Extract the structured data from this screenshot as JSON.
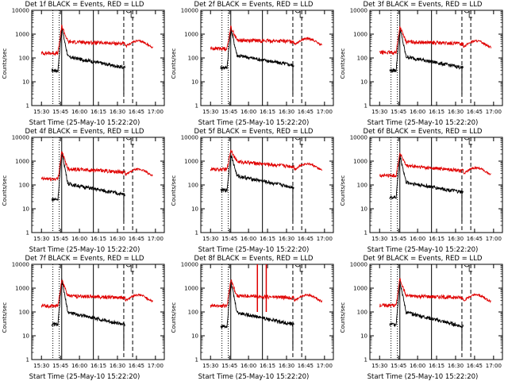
{
  "figure": {
    "xlabel": "Start Time (25-May-10 15:22:20)",
    "ylabel": "Counts/sec"
  },
  "chart_data": [
    {
      "type": "line",
      "title": "Det 1f BLACK = Events, RED = LLD",
      "xlabel": "Start Time (25-May-10 15:22:20)",
      "ylabel": "Counts/sec",
      "yscale": "log",
      "ylim": [
        1,
        10000
      ],
      "xlim": [
        "15:22:20",
        "17:07:00"
      ],
      "x_ticks": [
        "15:30",
        "15:45",
        "16:00",
        "16:15",
        "16:30",
        "16:45",
        "17:00"
      ],
      "y_ticks": [
        "1",
        "10",
        "100",
        "1000",
        "10000"
      ],
      "series": [
        {
          "name": "BLACK = Events",
          "color": "#000000",
          "pre": 30,
          "peak": 1800,
          "decay": 70,
          "end": 40
        },
        {
          "name": "RED = LLD",
          "color": "#e00000",
          "pre": 160,
          "peak": 2200,
          "decay": 300,
          "end": 400
        }
      ],
      "markers": {
        "dotted": [
          "15:39",
          "15:44"
        ],
        "solid": [
          "15:46",
          "16:11"
        ],
        "dashed": [
          "16:35",
          "16:42"
        ]
      }
    },
    {
      "type": "line",
      "title": "Det 2f BLACK = Events, RED = LLD",
      "xlabel": "Start Time (25-May-10 15:22:20)",
      "ylabel": "Counts/sec",
      "yscale": "log",
      "ylim": [
        1,
        10000
      ],
      "xlim": [
        "15:22:20",
        "17:07:00"
      ],
      "x_ticks": [
        "15:30",
        "15:45",
        "16:00",
        "16:15",
        "16:30",
        "16:45",
        "17:00"
      ],
      "y_ticks": [
        "1",
        "10",
        "100",
        "1000",
        "10000"
      ],
      "series": [
        {
          "name": "BLACK = Events",
          "color": "#000000",
          "pre": 40,
          "peak": 1800,
          "decay": 80,
          "end": 50
        },
        {
          "name": "RED = LLD",
          "color": "#e00000",
          "pre": 250,
          "peak": 2000,
          "decay": 350,
          "end": 500
        }
      ],
      "markers": {
        "dotted": [
          "15:39",
          "15:44"
        ],
        "solid": [
          "15:46",
          "16:11"
        ],
        "dashed": [
          "16:35",
          "16:42"
        ]
      }
    },
    {
      "type": "line",
      "title": "Det 3f BLACK = Events, RED = LLD",
      "xlabel": "Start Time (25-May-10 15:22:20)",
      "ylabel": "Counts/sec",
      "yscale": "log",
      "ylim": [
        1,
        10000
      ],
      "xlim": [
        "15:22:20",
        "17:07:00"
      ],
      "x_ticks": [
        "15:30",
        "15:45",
        "16:00",
        "16:15",
        "16:30",
        "16:45",
        "17:00"
      ],
      "y_ticks": [
        "1",
        "10",
        "100",
        "1000",
        "10000"
      ],
      "series": [
        {
          "name": "BLACK = Events",
          "color": "#000000",
          "pre": 30,
          "peak": 1800,
          "decay": 70,
          "end": 40
        },
        {
          "name": "RED = LLD",
          "color": "#e00000",
          "pre": 170,
          "peak": 2000,
          "decay": 300,
          "end": 400
        }
      ],
      "markers": {
        "dotted": [
          "15:39",
          "15:44"
        ],
        "solid": [
          "15:46",
          "16:11"
        ],
        "dashed": [
          "16:35",
          "16:42"
        ]
      }
    },
    {
      "type": "line",
      "title": "Det 4f BLACK = Events, RED = LLD",
      "xlabel": "Start Time (25-May-10 15:22:20)",
      "ylabel": "Counts/sec",
      "yscale": "log",
      "ylim": [
        1,
        10000
      ],
      "xlim": [
        "15:22:20",
        "17:07:00"
      ],
      "x_ticks": [
        "15:30",
        "15:45",
        "16:00",
        "16:15",
        "16:30",
        "16:45",
        "17:00"
      ],
      "y_ticks": [
        "1",
        "10",
        "100",
        "1000",
        "10000"
      ],
      "series": [
        {
          "name": "BLACK = Events",
          "color": "#000000",
          "pre": 25,
          "peak": 2500,
          "decay": 70,
          "end": 40
        },
        {
          "name": "RED = LLD",
          "color": "#e00000",
          "pre": 180,
          "peak": 2500,
          "decay": 300,
          "end": 350
        }
      ],
      "markers": {
        "dotted": [
          "15:39",
          "15:44"
        ],
        "solid": [
          "15:46",
          "16:11"
        ],
        "dashed": [
          "16:35",
          "16:42"
        ]
      }
    },
    {
      "type": "line",
      "title": "Det 5f BLACK = Events, RED = LLD",
      "xlabel": "Start Time (25-May-10 15:22:20)",
      "ylabel": "Counts/sec",
      "yscale": "log",
      "ylim": [
        1,
        10000
      ],
      "xlim": [
        "15:22:20",
        "17:07:00"
      ],
      "x_ticks": [
        "15:30",
        "15:45",
        "16:00",
        "16:15",
        "16:30",
        "16:45",
        "17:00"
      ],
      "y_ticks": [
        "1",
        "10",
        "100",
        "1000",
        "10000"
      ],
      "series": [
        {
          "name": "BLACK = Events",
          "color": "#000000",
          "pre": 60,
          "peak": 2000,
          "decay": 150,
          "end": 80
        },
        {
          "name": "RED = LLD",
          "color": "#e00000",
          "pre": 450,
          "peak": 3000,
          "decay": 600,
          "end": 600
        }
      ],
      "markers": {
        "dotted": [
          "15:39",
          "15:44"
        ],
        "solid": [
          "15:46",
          "16:11"
        ],
        "dashed": [
          "16:35",
          "16:42"
        ]
      }
    },
    {
      "type": "line",
      "title": "Det 6f BLACK = Events, RED = LLD",
      "xlabel": "Start Time (25-May-10 15:22:20)",
      "ylabel": "Counts/sec",
      "yscale": "log",
      "ylim": [
        1,
        10000
      ],
      "xlim": [
        "15:22:20",
        "17:07:00"
      ],
      "x_ticks": [
        "15:30",
        "15:45",
        "16:00",
        "16:15",
        "16:30",
        "16:45",
        "17:00"
      ],
      "y_ticks": [
        "1",
        "10",
        "100",
        "1000",
        "10000"
      ],
      "series": [
        {
          "name": "BLACK = Events",
          "color": "#000000",
          "pre": 30,
          "peak": 1800,
          "decay": 80,
          "end": 50
        },
        {
          "name": "RED = LLD",
          "color": "#e00000",
          "pre": 250,
          "peak": 2200,
          "decay": 400,
          "end": 400
        }
      ],
      "markers": {
        "dotted": [
          "15:39",
          "15:44"
        ],
        "solid": [
          "15:46",
          "16:11"
        ],
        "dashed": [
          "16:35",
          "16:42"
        ]
      }
    },
    {
      "type": "line",
      "title": "Det 7f BLACK = Events, RED = LLD",
      "xlabel": "Start Time (25-May-10 15:22:20)",
      "ylabel": "Counts/sec",
      "yscale": "log",
      "ylim": [
        1,
        10000
      ],
      "xlim": [
        "15:22:20",
        "17:07:00"
      ],
      "x_ticks": [
        "15:30",
        "15:45",
        "16:00",
        "16:15",
        "16:30",
        "16:45",
        "17:00"
      ],
      "y_ticks": [
        "1",
        "10",
        "100",
        "1000",
        "10000"
      ],
      "series": [
        {
          "name": "BLACK = Events",
          "color": "#000000",
          "pre": 30,
          "peak": 2200,
          "decay": 60,
          "end": 30
        },
        {
          "name": "RED = LLD",
          "color": "#e00000",
          "pre": 180,
          "peak": 2300,
          "decay": 300,
          "end": 400
        }
      ],
      "markers": {
        "dotted": [
          "15:39",
          "15:44"
        ],
        "solid": [
          "15:46",
          "16:11"
        ],
        "dashed": [
          "16:35",
          "16:42"
        ]
      }
    },
    {
      "type": "line",
      "title": "Det 8f BLACK = Events, RED = LLD",
      "xlabel": "Start Time (25-May-10 15:22:20)",
      "ylabel": "Counts/sec",
      "yscale": "log",
      "ylim": [
        1,
        10000
      ],
      "xlim": [
        "15:22:20",
        "17:07:00"
      ],
      "x_ticks": [
        "15:30",
        "15:45",
        "16:00",
        "16:15",
        "16:30",
        "16:45",
        "17:00"
      ],
      "y_ticks": [
        "1",
        "10",
        "100",
        "1000",
        "10000"
      ],
      "series": [
        {
          "name": "BLACK = Events",
          "color": "#000000",
          "pre": 25,
          "peak": 2000,
          "decay": 60,
          "end": 30
        },
        {
          "name": "RED = LLD",
          "color": "#e00000",
          "pre": 180,
          "peak": 2200,
          "decay": 300,
          "end": 400
        }
      ],
      "markers": {
        "dotted": [
          "15:39",
          "15:44"
        ],
        "solid": [
          "15:46",
          "16:11"
        ],
        "dashed": [
          "16:35",
          "16:42"
        ]
      },
      "spikes": [
        "16:07",
        "16:14"
      ]
    },
    {
      "type": "line",
      "title": "Det 9f BLACK = Events, RED = LLD",
      "xlabel": "Start Time (25-May-10 15:22:20)",
      "ylabel": "Counts/sec",
      "yscale": "log",
      "ylim": [
        1,
        10000
      ],
      "xlim": [
        "15:22:20",
        "17:07:00"
      ],
      "x_ticks": [
        "15:30",
        "15:45",
        "16:00",
        "16:15",
        "16:30",
        "16:45",
        "17:00"
      ],
      "y_ticks": [
        "1",
        "10",
        "100",
        "1000",
        "10000"
      ],
      "series": [
        {
          "name": "BLACK = Events",
          "color": "#000000",
          "pre": 30,
          "peak": 2000,
          "decay": 60,
          "end": 25
        },
        {
          "name": "RED = LLD",
          "color": "#e00000",
          "pre": 190,
          "peak": 2500,
          "decay": 300,
          "end": 400
        }
      ],
      "markers": {
        "dotted": [
          "15:39",
          "15:44"
        ],
        "solid": [
          "15:46",
          "16:11"
        ],
        "dashed": [
          "16:35",
          "16:42"
        ]
      }
    }
  ]
}
